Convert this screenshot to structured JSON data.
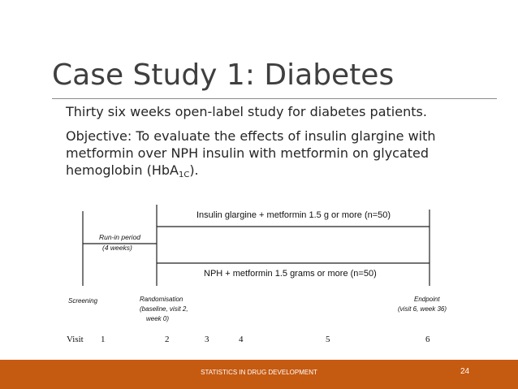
{
  "slide": {
    "title": "Case Study 1: Diabetes",
    "paragraph1": "Thirty six weeks open-label study for diabetes patients.",
    "paragraph2_main": "Objective: To evaluate the effects of insulin glargine with metformin over NPH insulin with metformin on glycated hemoglobin (HbA",
    "paragraph2_sub": "1C",
    "paragraph2_end": ")."
  },
  "diagram": {
    "arm_top": "Insulin glargine + metformin 1.5 g or more (n=50)",
    "arm_bottom": "NPH + metformin 1.5 grams or more (n=50)",
    "runin_line1": "Run-in period",
    "runin_line2": "(4 weeks)",
    "screening": "Screening",
    "randomisation_line1": "Randomisation",
    "randomisation_line2": "(baseline, visit 2,",
    "randomisation_line3": "week 0)",
    "endpoint_line1": "Endpoint",
    "endpoint_line2": "(visit 6, week 36)",
    "visit_label": "Visit",
    "visits": [
      "1",
      "2",
      "3",
      "4",
      "5",
      "6"
    ]
  },
  "footer": {
    "text": "STATISTICS IN DRUG DEVELOPMENT",
    "page": "24",
    "color": "#c55a11"
  }
}
